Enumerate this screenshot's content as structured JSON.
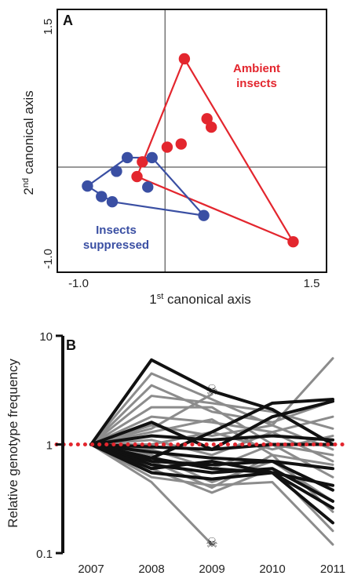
{
  "chart_data": [
    {
      "type": "scatter",
      "panel": "A",
      "xlabel": "1st canonical axis",
      "ylabel": "2nd canonical axis",
      "xlabel_base": "1",
      "xlabel_sup": "st",
      "xlabel_rest": " canonical axis",
      "ylabel_base": "2",
      "ylabel_sup": "nd",
      "ylabel_rest": " canonical axis",
      "xlim": [
        -1.0,
        1.5
      ],
      "ylim": [
        -1.0,
        1.5
      ],
      "x_ticks": [
        "-1.0",
        "1.5"
      ],
      "y_ticks": [
        "-1.0",
        "1.5"
      ],
      "reference_lines": {
        "x": 0,
        "y": 0
      },
      "series": [
        {
          "name": "Ambient insects",
          "label_lines": [
            "Ambient",
            "insects"
          ],
          "color": "#e3262e",
          "points": [
            [
              0.18,
              1.03
            ],
            [
              0.39,
              0.46
            ],
            [
              0.43,
              0.38
            ],
            [
              0.15,
              0.22
            ],
            [
              0.02,
              0.19
            ],
            [
              -0.21,
              0.05
            ],
            [
              -0.26,
              -0.09
            ],
            [
              1.19,
              -0.71
            ]
          ],
          "hull": [
            [
              0.18,
              1.03
            ],
            [
              1.19,
              -0.71
            ],
            [
              -0.26,
              -0.09
            ]
          ]
        },
        {
          "name": "Insects suppressed",
          "label_lines": [
            "Insects",
            "suppressed"
          ],
          "color": "#3a4fa3",
          "points": [
            [
              -0.35,
              0.09
            ],
            [
              -0.12,
              0.09
            ],
            [
              -0.45,
              -0.04
            ],
            [
              -0.16,
              -0.19
            ],
            [
              -0.72,
              -0.18
            ],
            [
              -0.59,
              -0.28
            ],
            [
              -0.49,
              -0.33
            ],
            [
              0.36,
              -0.46
            ]
          ],
          "hull": [
            [
              -0.35,
              0.09
            ],
            [
              -0.12,
              0.09
            ],
            [
              0.36,
              -0.46
            ],
            [
              -0.49,
              -0.33
            ],
            [
              -0.72,
              -0.18
            ]
          ]
        }
      ]
    },
    {
      "type": "line",
      "panel": "B",
      "ylabel": "Relative genotype frequency",
      "y_scale": "log",
      "ylim": [
        0.1,
        10
      ],
      "y_ticks": [
        "0.1",
        "1",
        "10"
      ],
      "x": [
        "2007",
        "2008",
        "2009",
        "2010",
        "2011"
      ],
      "reference_line": {
        "y": 1,
        "color": "#e3262e",
        "style": "dotted"
      },
      "colors": {
        "gray": "#8c8c8c",
        "black": "#111111"
      },
      "series": [
        {
          "color": "black",
          "values": [
            1,
            6.0,
            3.1,
            2.1,
            1.0
          ]
        },
        {
          "color": "black",
          "values": [
            1,
            0.75,
            1.3,
            2.4,
            2.6
          ]
        },
        {
          "color": "black",
          "values": [
            1,
            1.6,
            0.9,
            1.8,
            2.5
          ]
        },
        {
          "color": "black",
          "values": [
            1,
            1.2,
            1.1,
            1.2,
            1.1
          ]
        },
        {
          "color": "black",
          "values": [
            1,
            0.95,
            0.9,
            1.0,
            1.0
          ]
        },
        {
          "color": "black",
          "values": [
            1,
            0.85,
            0.75,
            0.7,
            0.6
          ]
        },
        {
          "color": "black",
          "values": [
            1,
            0.75,
            0.6,
            0.55,
            0.42
          ]
        },
        {
          "color": "black",
          "values": [
            1,
            0.7,
            0.65,
            0.7,
            0.38
          ]
        },
        {
          "color": "black",
          "values": [
            1,
            0.65,
            0.55,
            0.6,
            0.3
          ]
        },
        {
          "color": "black",
          "values": [
            1,
            0.55,
            0.48,
            0.55,
            0.26
          ]
        },
        {
          "color": "black",
          "values": [
            1,
            0.6,
            0.7,
            0.55,
            0.19
          ]
        },
        {
          "color": "gray",
          "values": [
            1,
            4.5,
            2.6,
            1.5,
            6.2
          ]
        },
        {
          "color": "gray",
          "values": [
            1,
            3.5,
            2.0,
            1.6,
            2.5
          ]
        },
        {
          "color": "gray",
          "values": [
            1,
            2.8,
            2.4,
            2.0,
            1.4
          ]
        },
        {
          "color": "gray",
          "values": [
            1,
            2.2,
            2.2,
            1.0,
            0.8
          ]
        },
        {
          "color": "gray",
          "values": [
            1,
            1.8,
            1.6,
            1.3,
            1.8
          ]
        },
        {
          "color": "gray",
          "values": [
            1,
            1.5,
            1.2,
            1.5,
            0.9
          ]
        },
        {
          "color": "gray",
          "values": [
            1,
            1.3,
            1.7,
            0.8,
            0.65
          ]
        },
        {
          "color": "gray",
          "values": [
            1,
            1.1,
            0.8,
            1.3,
            0.7
          ]
        },
        {
          "color": "gray",
          "values": [
            1,
            1.0,
            1.3,
            0.9,
            1.2
          ]
        },
        {
          "color": "gray",
          "values": [
            1,
            0.9,
            0.6,
            1.0,
            0.5
          ]
        },
        {
          "color": "gray",
          "values": [
            1,
            0.8,
            0.45,
            0.7,
            0.3
          ]
        },
        {
          "color": "gray",
          "values": [
            1,
            0.7,
            0.4,
            0.8,
            0.24
          ]
        },
        {
          "color": "gray",
          "values": [
            1,
            0.6,
            0.36,
            0.6,
            0.16
          ]
        },
        {
          "color": "gray",
          "values": [
            1,
            0.5,
            0.42,
            0.45,
            0.12
          ]
        },
        {
          "color": "gray",
          "values": [
            1,
            0.45,
            0.12,
            null,
            null
          ]
        },
        {
          "color": "gray",
          "values": [
            1,
            1.4,
            2.9,
            null,
            null
          ]
        }
      ],
      "annotations": [
        {
          "symbol": "☠",
          "x": "2009",
          "y": 3.2
        },
        {
          "symbol": "☠",
          "x": "2009",
          "y": 0.125
        }
      ]
    }
  ]
}
